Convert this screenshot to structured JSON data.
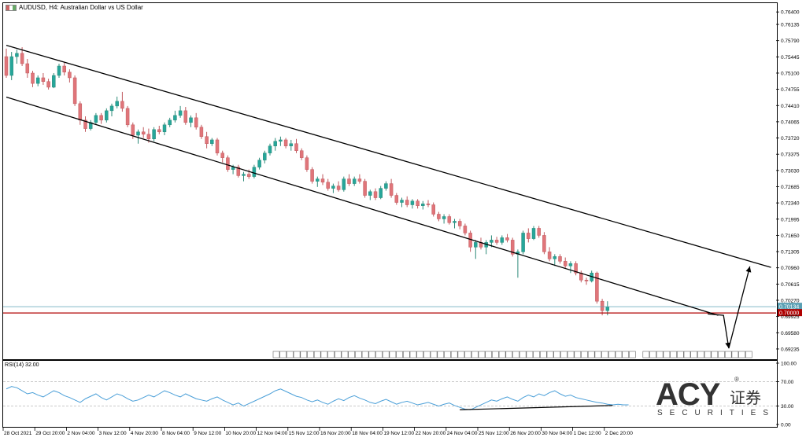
{
  "window": {
    "title": "AUDUSD, H4:  Australian Dollar vs US Dollar"
  },
  "rsi": {
    "label": "RSI(14) 32.00",
    "levels": [
      "100.00",
      "70.00",
      "30.00",
      "0.00"
    ]
  },
  "logo": {
    "text": "ACY",
    "cn": "证券",
    "sub": "SECURITIES",
    "reg": "®"
  },
  "chart_data": [
    {
      "type": "candlestick",
      "title": "AUDUSD, H4:  Australian Dollar vs US Dollar",
      "ylim": [
        0.6905,
        0.7652
      ],
      "y_ticks": [
        "0.76400",
        "0.76135",
        "0.75790",
        "0.75445",
        "0.75100",
        "0.74755",
        "0.74410",
        "0.74065",
        "0.73720",
        "0.73375",
        "0.73030",
        "0.72685",
        "0.72340",
        "0.71995",
        "0.71650",
        "0.71305",
        "0.70960",
        "0.70615",
        "0.70270",
        "0.69925",
        "0.69580",
        "0.69235"
      ],
      "x_tick_labels": [
        "28 Oct 2021",
        "29 Oct 20:00",
        "2 Nov 04:00",
        "3 Nov 12:00",
        "4 Nov 20:00",
        "8 Nov 04:00",
        "9 Nov 12:00",
        "10 Nov 20:00",
        "12 Nov 04:00",
        "15 Nov 12:00",
        "16 Nov 20:00",
        "18 Nov 04:00",
        "19 Nov 12:00",
        "22 Nov 20:00",
        "24 Nov 04:00",
        "25 Nov 12:00",
        "26 Nov 20:00",
        "30 Nov 04:00",
        "1 Dec 12:00",
        "2 Dec 20:00"
      ],
      "price_lines": [
        {
          "label": "0.70134",
          "value": 0.70134,
          "color": "#5aa0b4"
        },
        {
          "label": "0.70000",
          "value": 0.7,
          "color": "#b00000"
        }
      ],
      "channel": {
        "upper": [
          [
            0,
            0.7569
          ],
          [
            145,
            0.7097
          ]
        ],
        "lower": [
          [
            0,
            0.7459
          ],
          [
            135,
            0.6995
          ]
        ]
      },
      "projection": [
        [
          133,
          0.6998
        ],
        [
          136,
          0.6995
        ],
        [
          137,
          0.6925
        ],
        [
          141,
          0.7099
        ]
      ],
      "candles": [
        [
          0.7545,
          0.7562,
          0.75,
          0.7505
        ],
        [
          0.7505,
          0.7555,
          0.7495,
          0.7545
        ],
        [
          0.7545,
          0.756,
          0.753,
          0.7552
        ],
        [
          0.7552,
          0.7565,
          0.7525,
          0.753
        ],
        [
          0.753,
          0.754,
          0.75,
          0.751
        ],
        [
          0.751,
          0.7515,
          0.748,
          0.7488
        ],
        [
          0.7488,
          0.7505,
          0.7482,
          0.75
        ],
        [
          0.75,
          0.751,
          0.7485,
          0.7492
        ],
        [
          0.7492,
          0.7498,
          0.7475,
          0.748
        ],
        [
          0.748,
          0.751,
          0.7478,
          0.7505
        ],
        [
          0.7505,
          0.753,
          0.75,
          0.7525
        ],
        [
          0.7525,
          0.7532,
          0.7505,
          0.7512
        ],
        [
          0.7512,
          0.7518,
          0.749,
          0.75
        ],
        [
          0.75,
          0.7505,
          0.744,
          0.7445
        ],
        [
          0.7445,
          0.745,
          0.74,
          0.741
        ],
        [
          0.741,
          0.7418,
          0.7385,
          0.7392
        ],
        [
          0.7392,
          0.741,
          0.7388,
          0.7405
        ],
        [
          0.7405,
          0.7425,
          0.74,
          0.742
        ],
        [
          0.742,
          0.7425,
          0.7402,
          0.741
        ],
        [
          0.741,
          0.7435,
          0.7405,
          0.743
        ],
        [
          0.743,
          0.7445,
          0.7418,
          0.744
        ],
        [
          0.744,
          0.746,
          0.7435,
          0.745
        ],
        [
          0.745,
          0.747,
          0.7428,
          0.7435
        ],
        [
          0.7435,
          0.744,
          0.7395,
          0.74
        ],
        [
          0.74,
          0.7405,
          0.737,
          0.7378
        ],
        [
          0.7378,
          0.739,
          0.736,
          0.7385
        ],
        [
          0.7385,
          0.7395,
          0.7372,
          0.738
        ],
        [
          0.738,
          0.7392,
          0.7362,
          0.737
        ],
        [
          0.737,
          0.7395,
          0.7365,
          0.739
        ],
        [
          0.739,
          0.7398,
          0.738,
          0.7385
        ],
        [
          0.7385,
          0.7405,
          0.7378,
          0.74
        ],
        [
          0.74,
          0.7415,
          0.7395,
          0.741
        ],
        [
          0.741,
          0.743,
          0.7405,
          0.742
        ],
        [
          0.742,
          0.744,
          0.7415,
          0.743
        ],
        [
          0.743,
          0.7438,
          0.74,
          0.7405
        ],
        [
          0.7405,
          0.742,
          0.7395,
          0.7415
        ],
        [
          0.7415,
          0.7425,
          0.739,
          0.7395
        ],
        [
          0.7395,
          0.74,
          0.737,
          0.7375
        ],
        [
          0.7375,
          0.7385,
          0.735,
          0.736
        ],
        [
          0.736,
          0.7372,
          0.7355,
          0.7368
        ],
        [
          0.7368,
          0.7372,
          0.7335,
          0.734
        ],
        [
          0.734,
          0.7345,
          0.732,
          0.733
        ],
        [
          0.733,
          0.7335,
          0.73,
          0.7305
        ],
        [
          0.7305,
          0.7315,
          0.7295,
          0.731
        ],
        [
          0.731,
          0.7315,
          0.7288,
          0.7292
        ],
        [
          0.7292,
          0.73,
          0.728,
          0.7295
        ],
        [
          0.7295,
          0.7305,
          0.7285,
          0.729
        ],
        [
          0.729,
          0.7315,
          0.7286,
          0.731
        ],
        [
          0.731,
          0.733,
          0.7305,
          0.7325
        ],
        [
          0.7325,
          0.7345,
          0.7318,
          0.734
        ],
        [
          0.734,
          0.736,
          0.7335,
          0.7355
        ],
        [
          0.7355,
          0.7372,
          0.7345,
          0.7365
        ],
        [
          0.7365,
          0.7375,
          0.7355,
          0.7368
        ],
        [
          0.7368,
          0.7372,
          0.735,
          0.7355
        ],
        [
          0.7355,
          0.7368,
          0.7345,
          0.736
        ],
        [
          0.736,
          0.737,
          0.734,
          0.7345
        ],
        [
          0.7345,
          0.735,
          0.7325,
          0.733
        ],
        [
          0.733,
          0.7335,
          0.73,
          0.7305
        ],
        [
          0.7305,
          0.731,
          0.7275,
          0.728
        ],
        [
          0.728,
          0.729,
          0.7268,
          0.7285
        ],
        [
          0.7285,
          0.7295,
          0.7272,
          0.7278
        ],
        [
          0.7278,
          0.7285,
          0.726,
          0.7265
        ],
        [
          0.7265,
          0.7275,
          0.7255,
          0.727
        ],
        [
          0.727,
          0.728,
          0.7258,
          0.7262
        ],
        [
          0.7262,
          0.729,
          0.7258,
          0.7285
        ],
        [
          0.7285,
          0.7295,
          0.727,
          0.7275
        ],
        [
          0.7275,
          0.729,
          0.727,
          0.7285
        ],
        [
          0.7285,
          0.7295,
          0.7275,
          0.728
        ],
        [
          0.728,
          0.7285,
          0.7245,
          0.725
        ],
        [
          0.725,
          0.7262,
          0.724,
          0.7258
        ],
        [
          0.7258,
          0.7265,
          0.724,
          0.7245
        ],
        [
          0.7245,
          0.727,
          0.7242,
          0.7265
        ],
        [
          0.7265,
          0.728,
          0.726,
          0.7275
        ],
        [
          0.7275,
          0.7285,
          0.7245,
          0.725
        ],
        [
          0.725,
          0.7255,
          0.723,
          0.7235
        ],
        [
          0.7235,
          0.7245,
          0.7225,
          0.724
        ],
        [
          0.724,
          0.7248,
          0.7225,
          0.723
        ],
        [
          0.723,
          0.7242,
          0.7222,
          0.7238
        ],
        [
          0.7238,
          0.7242,
          0.7222,
          0.7228
        ],
        [
          0.7228,
          0.7238,
          0.722,
          0.7232
        ],
        [
          0.7232,
          0.724,
          0.7225,
          0.723
        ],
        [
          0.723,
          0.7235,
          0.7205,
          0.721
        ],
        [
          0.721,
          0.7215,
          0.7195,
          0.72
        ],
        [
          0.72,
          0.721,
          0.719,
          0.7205
        ],
        [
          0.7205,
          0.721,
          0.7188,
          0.7192
        ],
        [
          0.7192,
          0.72,
          0.718,
          0.7195
        ],
        [
          0.7195,
          0.72,
          0.7178,
          0.7185
        ],
        [
          0.7185,
          0.719,
          0.7165,
          0.717
        ],
        [
          0.717,
          0.7175,
          0.713,
          0.714
        ],
        [
          0.714,
          0.7155,
          0.7115,
          0.715
        ],
        [
          0.715,
          0.716,
          0.7135,
          0.714
        ],
        [
          0.714,
          0.7155,
          0.7125,
          0.715
        ],
        [
          0.715,
          0.7165,
          0.714,
          0.7155
        ],
        [
          0.7155,
          0.7162,
          0.7145,
          0.715
        ],
        [
          0.715,
          0.7165,
          0.7145,
          0.716
        ],
        [
          0.716,
          0.7168,
          0.715,
          0.7155
        ],
        [
          0.7155,
          0.716,
          0.712,
          0.7125
        ],
        [
          0.7125,
          0.7135,
          0.7075,
          0.713
        ],
        [
          0.713,
          0.7175,
          0.7125,
          0.717
        ],
        [
          0.717,
          0.718,
          0.715,
          0.7158
        ],
        [
          0.7158,
          0.7185,
          0.7155,
          0.718
        ],
        [
          0.718,
          0.7185,
          0.716,
          0.7165
        ],
        [
          0.7165,
          0.7172,
          0.7125,
          0.713
        ],
        [
          0.713,
          0.714,
          0.711,
          0.7115
        ],
        [
          0.7115,
          0.7125,
          0.71,
          0.712
        ],
        [
          0.712,
          0.7125,
          0.7105,
          0.711
        ],
        [
          0.711,
          0.7118,
          0.7095,
          0.71
        ],
        [
          0.71,
          0.711,
          0.7085,
          0.7105
        ],
        [
          0.7105,
          0.711,
          0.708,
          0.7085
        ],
        [
          0.7085,
          0.709,
          0.7065,
          0.707
        ],
        [
          0.707,
          0.7075,
          0.706,
          0.7068
        ],
        [
          0.7068,
          0.709,
          0.7065,
          0.7085
        ],
        [
          0.7085,
          0.7088,
          0.702,
          0.7025
        ],
        [
          0.7025,
          0.703,
          0.6995,
          0.7005
        ],
        [
          0.7005,
          0.7025,
          0.6995,
          0.7013
        ]
      ]
    },
    {
      "type": "line",
      "title": "RSI(14) 32.00",
      "ylim": [
        0,
        100
      ],
      "levels": [
        100,
        70,
        30,
        0
      ],
      "values": [
        58,
        62,
        60,
        55,
        50,
        52,
        48,
        45,
        50,
        55,
        52,
        47,
        44,
        40,
        36,
        42,
        46,
        50,
        44,
        40,
        45,
        50,
        47,
        42,
        38,
        40,
        44,
        48,
        45,
        50,
        55,
        52,
        48,
        45,
        50,
        46,
        42,
        40,
        38,
        42,
        45,
        40,
        36,
        32,
        35,
        30,
        34,
        38,
        42,
        46,
        50,
        55,
        58,
        54,
        50,
        46,
        44,
        40,
        37,
        40,
        36,
        33,
        38,
        42,
        39,
        44,
        47,
        43,
        40,
        36,
        34,
        38,
        41,
        37,
        33,
        36,
        38,
        35,
        32,
        34,
        36,
        33,
        30,
        33,
        35,
        31,
        28,
        25,
        24,
        28,
        32,
        36,
        40,
        38,
        42,
        45,
        41,
        38,
        44,
        48,
        45,
        50,
        47,
        52,
        55,
        50,
        46,
        48,
        44,
        42,
        40,
        38,
        36,
        35,
        33,
        32,
        33,
        32,
        32
      ],
      "support_line": [
        [
          86,
          24
        ],
        [
          112,
          31
        ]
      ]
    }
  ]
}
